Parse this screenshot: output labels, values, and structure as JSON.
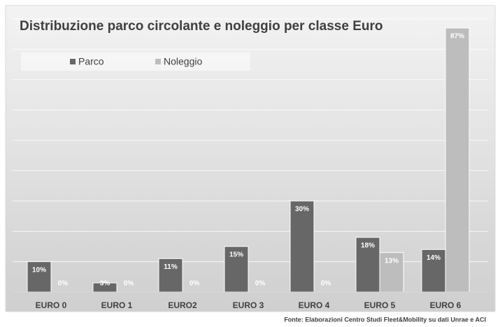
{
  "chart_data": {
    "type": "bar",
    "title": "Distribuzione parco circolante e noleggio per classe Euro",
    "source": "Fonte: Elaborazioni Centro Studi Fleet&Mobility su dati Unrae e ACI",
    "categories": [
      "EURO 0",
      "EURO 1",
      "EURO2",
      "EURO 3",
      "EURO 4",
      "EURO 5",
      "EURO 6"
    ],
    "series": [
      {
        "name": "Parco",
        "color": "#676767",
        "values": [
          10,
          3,
          11,
          15,
          30,
          18,
          14
        ],
        "value_labels": [
          "10%",
          "3%",
          "11%",
          "15%",
          "30%",
          "18%",
          "14%"
        ]
      },
      {
        "name": "Noleggio",
        "color": "#bdbdbd",
        "values": [
          0,
          0,
          0,
          0,
          0,
          13,
          87
        ],
        "value_labels": [
          "0%",
          "0%",
          "0%",
          "0%",
          "0%",
          "13%",
          "87%"
        ]
      }
    ],
    "ylim": [
      0,
      90
    ],
    "yticks": [
      0,
      10,
      20,
      30,
      40,
      50,
      60,
      70,
      80,
      90
    ],
    "grid": true,
    "legend": "top-left"
  }
}
